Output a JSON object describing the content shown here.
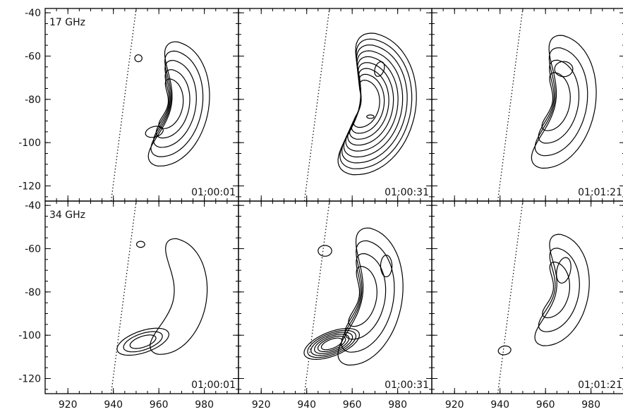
{
  "chart_data": {
    "type": "contour",
    "title": "",
    "xlabel": "",
    "ylabel": "",
    "xlim": [
      910,
      995
    ],
    "ylim": [
      -127,
      -38
    ],
    "xticks": [
      920,
      940,
      960,
      980
    ],
    "yticks": [
      -40,
      -60,
      -80,
      -100,
      -120
    ],
    "xtick_labels": [
      "920",
      "940",
      "960",
      "980"
    ],
    "ytick_labels": [
      "-40",
      "-60",
      "-80",
      "-100",
      "-120"
    ],
    "grid": false,
    "layout": "2x3 grid",
    "rows": [
      {
        "frequency_label": "17 GHz"
      },
      {
        "frequency_label": "34 GHz"
      }
    ],
    "panels": [
      {
        "row": 0,
        "col": 0,
        "frequency": "17 GHz",
        "time": "01:00:01",
        "contour_levels": 5,
        "peaks": [
          {
            "x": 951,
            "y": -61
          },
          {
            "x": 958,
            "y": -95
          }
        ]
      },
      {
        "row": 0,
        "col": 1,
        "frequency": "17 GHz",
        "time": "01:00:31",
        "contour_levels": 9,
        "peaks": [
          {
            "x": 972,
            "y": -66
          },
          {
            "x": 968,
            "y": -88
          }
        ]
      },
      {
        "row": 0,
        "col": 2,
        "frequency": "17 GHz",
        "time": "01:01:21",
        "contour_levels": 4,
        "peaks": [
          {
            "x": 968,
            "y": -66
          }
        ]
      },
      {
        "row": 1,
        "col": 0,
        "frequency": "34 GHz",
        "time": "01:00:01",
        "contour_levels": 4,
        "peaks": [
          {
            "x": 952,
            "y": -58
          },
          {
            "x": 949,
            "y": -104
          }
        ]
      },
      {
        "row": 1,
        "col": 1,
        "frequency": "34 GHz",
        "time": "01:00:31",
        "contour_levels": 9,
        "peaks": [
          {
            "x": 948,
            "y": -61
          },
          {
            "x": 946,
            "y": -106
          }
        ]
      },
      {
        "row": 1,
        "col": 2,
        "frequency": "34 GHz",
        "time": "01:01:21",
        "contour_levels": 4,
        "peaks": [
          {
            "x": 967,
            "y": -70
          },
          {
            "x": 942,
            "y": -107
          }
        ]
      }
    ],
    "limb_line": {
      "style": "dotted",
      "points": [
        {
          "x": 939,
          "y": -127
        },
        {
          "x": 950,
          "y": -38
        }
      ]
    }
  }
}
